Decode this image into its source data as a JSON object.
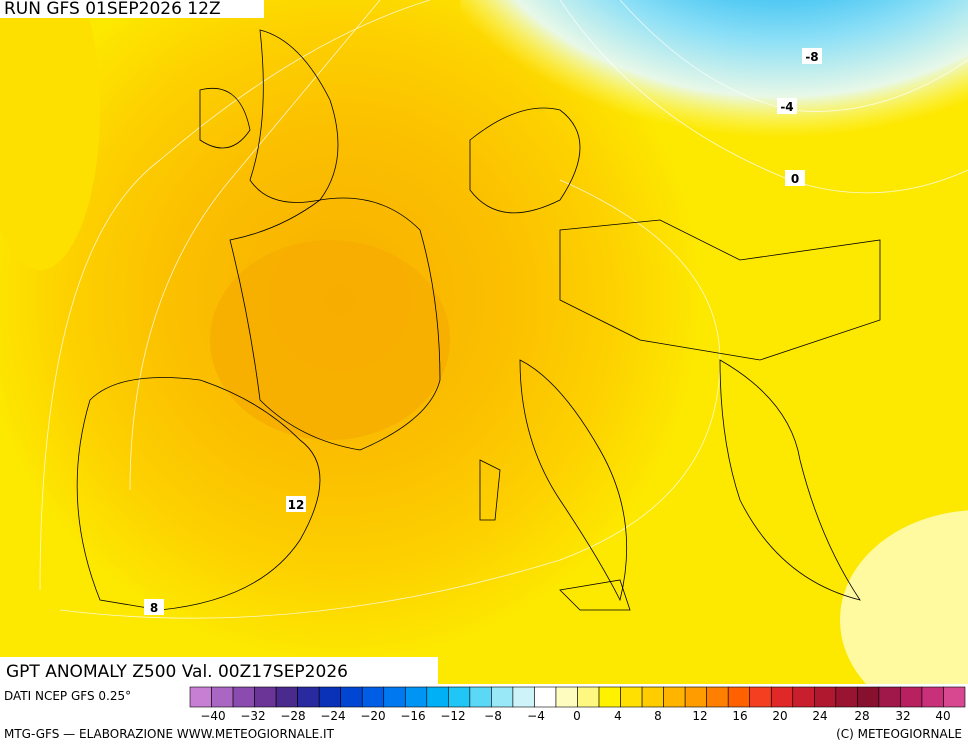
{
  "header": {
    "run": "RUN GFS 01SEP2026 12Z"
  },
  "map": {
    "title": "GPT ANOMALY Z500 Val. 00Z17SEP2026",
    "contour_labels": [
      "-8",
      "-4",
      "0",
      "12",
      "8"
    ]
  },
  "legend": {
    "source": "DATI NCEP GFS 0.25°",
    "colors": [
      "#c77fd4",
      "#a966c2",
      "#8a4cae",
      "#6a3596",
      "#4a2a8c",
      "#2a2aa0",
      "#0a32b8",
      "#0046d2",
      "#005ee6",
      "#0078f0",
      "#0094f4",
      "#00b0f6",
      "#20c6f6",
      "#5ad8f6",
      "#98e8f8",
      "#cef4fa",
      "#ffffff",
      "#fffcc0",
      "#fff880",
      "#fff200",
      "#ffe000",
      "#ffcc00",
      "#ffb400",
      "#ff9c00",
      "#ff8000",
      "#ff6000",
      "#f44020",
      "#e02828",
      "#c81e2e",
      "#b01830",
      "#981430",
      "#86102e",
      "#a0184a",
      "#b82060",
      "#c8307a",
      "#d84890"
    ],
    "tick_labels": [
      "−40",
      "−32",
      "−28",
      "−24",
      "−20",
      "−16",
      "−12",
      "−8",
      "−4",
      "0",
      "4",
      "8",
      "12",
      "16",
      "20",
      "24",
      "28",
      "32",
      "40"
    ]
  },
  "footer": {
    "left": "MTG-GFS — ELABORAZIONE WWW.METEOGIORNALE.IT",
    "right": "(C) METEOGIORNALE"
  }
}
